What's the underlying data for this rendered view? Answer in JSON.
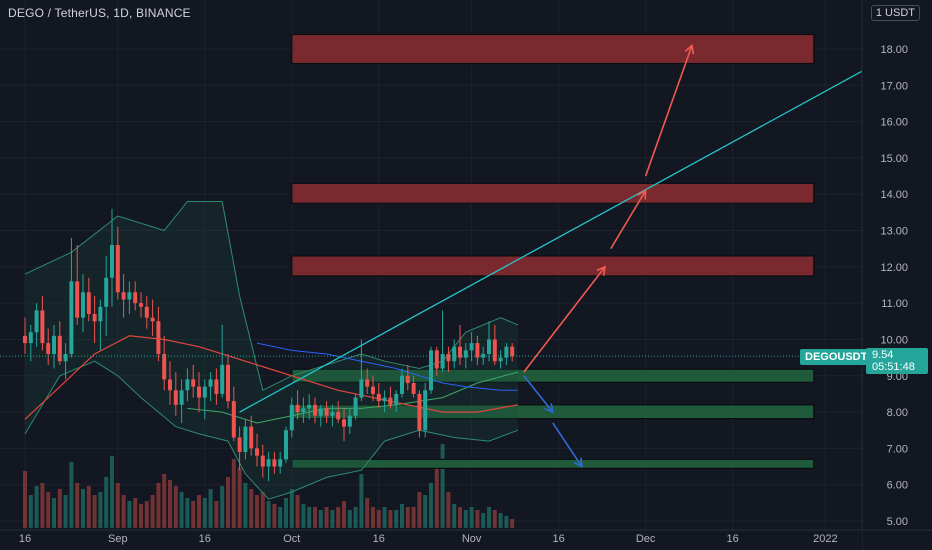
{
  "header": {
    "title": "DEGO / TetherUS, 1D, BINANCE",
    "currency": "1 USDT"
  },
  "price_axis": {
    "symbol_label": "DEGOUSDT",
    "last_price": "9.54",
    "countdown": "05:51:48"
  },
  "colors": {
    "background": "#131722",
    "up_candle": "#26a69a",
    "down_candle": "#ef5350",
    "resistance_zone": "#7a2a2e",
    "support_zone": "#1f5a3a",
    "trendline": "#22c7c7",
    "bollinger": "#2e8b6f",
    "ma_red": "#e0463f",
    "ma_blue": "#2962ff",
    "arrow_up": "#f05a50",
    "arrow_down": "#2f6ad8"
  },
  "chart_data": {
    "type": "candlestick",
    "symbol": "DEGO / TetherUS",
    "timeframe": "1D",
    "exchange": "BINANCE",
    "y_axis": {
      "range": [
        5.0,
        18.6
      ],
      "ticks": [
        "5.00",
        "6.00",
        "7.00",
        "8.00",
        "9.00",
        "10.00",
        "11.00",
        "12.00",
        "13.00",
        "14.00",
        "15.00",
        "16.00",
        "17.00",
        "18.00"
      ],
      "tick_values": [
        5,
        6,
        7,
        8,
        9,
        10,
        11,
        12,
        13,
        14,
        15,
        16,
        17,
        18
      ]
    },
    "x_axis": {
      "ticks": [
        "16",
        "Sep",
        "16",
        "Oct",
        "16",
        "Nov",
        "16",
        "Dec",
        "16",
        "2022"
      ],
      "tick_days": [
        0,
        16,
        31,
        46,
        61,
        77,
        92,
        107,
        122,
        138
      ]
    },
    "last_day": 84,
    "candles": [
      [
        0,
        10.1,
        10.6,
        9.6,
        9.9
      ],
      [
        1,
        9.9,
        10.4,
        9.4,
        10.2
      ],
      [
        2,
        10.2,
        11.0,
        9.8,
        10.8
      ],
      [
        3,
        10.8,
        11.2,
        9.7,
        9.9
      ],
      [
        4,
        9.9,
        10.3,
        9.3,
        9.6
      ],
      [
        5,
        9.6,
        10.4,
        9.2,
        10.1
      ],
      [
        6,
        10.1,
        10.5,
        9.3,
        9.4
      ],
      [
        7,
        9.4,
        9.9,
        8.9,
        9.6
      ],
      [
        8,
        9.6,
        12.8,
        9.5,
        11.6
      ],
      [
        9,
        11.6,
        12.6,
        10.4,
        10.6
      ],
      [
        10,
        10.6,
        11.8,
        10.2,
        11.3
      ],
      [
        11,
        11.3,
        11.7,
        10.5,
        10.7
      ],
      [
        12,
        10.7,
        11.2,
        9.9,
        10.5
      ],
      [
        13,
        10.5,
        11.1,
        9.7,
        10.9
      ],
      [
        14,
        10.9,
        12.3,
        10.1,
        11.7
      ],
      [
        15,
        11.7,
        13.6,
        10.9,
        12.6
      ],
      [
        16,
        12.6,
        13.1,
        11.1,
        11.3
      ],
      [
        17,
        11.3,
        11.8,
        10.6,
        11.1
      ],
      [
        18,
        11.1,
        11.6,
        10.7,
        11.3
      ],
      [
        19,
        11.3,
        11.6,
        10.8,
        11.0
      ],
      [
        20,
        11.0,
        11.3,
        10.6,
        10.9
      ],
      [
        21,
        10.9,
        11.2,
        10.3,
        10.6
      ],
      [
        22,
        10.6,
        11.1,
        10.1,
        10.5
      ],
      [
        23,
        10.5,
        10.9,
        9.4,
        9.6
      ],
      [
        24,
        9.6,
        10.1,
        8.6,
        8.9
      ],
      [
        25,
        8.9,
        9.4,
        8.2,
        8.6
      ],
      [
        26,
        8.6,
        9.1,
        7.9,
        8.2
      ],
      [
        27,
        8.2,
        8.9,
        7.7,
        8.6
      ],
      [
        28,
        8.6,
        9.2,
        8.3,
        8.9
      ],
      [
        29,
        8.9,
        9.3,
        8.4,
        8.7
      ],
      [
        30,
        8.7,
        9.1,
        8.0,
        8.4
      ],
      [
        31,
        8.4,
        8.9,
        7.8,
        8.7
      ],
      [
        32,
        8.7,
        9.1,
        8.3,
        8.9
      ],
      [
        33,
        8.9,
        9.2,
        8.2,
        8.5
      ],
      [
        34,
        8.5,
        10.4,
        8.4,
        9.3
      ],
      [
        35,
        9.3,
        9.6,
        8.1,
        8.3
      ],
      [
        36,
        8.3,
        8.7,
        7.2,
        7.3
      ],
      [
        37,
        7.3,
        7.6,
        6.4,
        6.9
      ],
      [
        38,
        6.9,
        7.8,
        6.7,
        7.6
      ],
      [
        39,
        7.6,
        7.9,
        6.8,
        7.0
      ],
      [
        40,
        7.0,
        7.4,
        6.5,
        6.8
      ],
      [
        41,
        6.8,
        7.1,
        6.2,
        6.5
      ],
      [
        42,
        6.5,
        6.9,
        6.1,
        6.7
      ],
      [
        43,
        6.7,
        6.9,
        6.3,
        6.5
      ],
      [
        44,
        6.5,
        6.9,
        6.3,
        6.7
      ],
      [
        45,
        6.7,
        7.6,
        6.6,
        7.5
      ],
      [
        46,
        7.5,
        8.4,
        7.3,
        8.2
      ],
      [
        47,
        8.2,
        8.6,
        7.8,
        8.0
      ],
      [
        48,
        8.0,
        8.4,
        7.7,
        8.1
      ],
      [
        49,
        8.1,
        8.5,
        7.8,
        8.2
      ],
      [
        50,
        8.2,
        8.4,
        7.7,
        7.9
      ],
      [
        51,
        7.9,
        8.2,
        7.6,
        8.1
      ],
      [
        52,
        8.1,
        8.3,
        7.7,
        7.9
      ],
      [
        53,
        7.9,
        8.2,
        7.6,
        8.0
      ],
      [
        54,
        8.0,
        8.3,
        7.7,
        7.8
      ],
      [
        55,
        7.8,
        8.1,
        7.2,
        7.6
      ],
      [
        56,
        7.6,
        8.1,
        7.4,
        7.9
      ],
      [
        57,
        7.9,
        8.5,
        7.8,
        8.4
      ],
      [
        58,
        8.4,
        10.0,
        8.3,
        8.9
      ],
      [
        59,
        8.9,
        9.2,
        8.5,
        8.7
      ],
      [
        60,
        8.7,
        9.0,
        8.3,
        8.5
      ],
      [
        61,
        8.5,
        8.8,
        8.1,
        8.3
      ],
      [
        62,
        8.3,
        8.6,
        8.0,
        8.4
      ],
      [
        63,
        8.4,
        8.7,
        8.1,
        8.2
      ],
      [
        64,
        8.2,
        8.6,
        8.0,
        8.5
      ],
      [
        65,
        8.5,
        9.2,
        8.4,
        9.0
      ],
      [
        66,
        9.0,
        9.3,
        8.6,
        8.8
      ],
      [
        67,
        8.8,
        9.0,
        8.4,
        8.5
      ],
      [
        68,
        8.5,
        8.6,
        7.3,
        7.5
      ],
      [
        69,
        7.5,
        8.8,
        7.3,
        8.6
      ],
      [
        70,
        8.6,
        9.8,
        8.5,
        9.7
      ],
      [
        71,
        9.7,
        9.8,
        9.0,
        9.2
      ],
      [
        72,
        9.2,
        10.8,
        9.1,
        9.6
      ],
      [
        73,
        9.6,
        9.8,
        9.1,
        9.4
      ],
      [
        74,
        9.4,
        10.0,
        9.2,
        9.8
      ],
      [
        75,
        9.8,
        10.4,
        9.3,
        9.5
      ],
      [
        76,
        9.5,
        9.9,
        9.2,
        9.7
      ],
      [
        77,
        9.7,
        10.2,
        9.4,
        9.9
      ],
      [
        78,
        9.9,
        10.1,
        9.3,
        9.5
      ],
      [
        79,
        9.5,
        9.8,
        9.3,
        9.6
      ],
      [
        80,
        9.6,
        10.5,
        9.4,
        10.0
      ],
      [
        81,
        10.0,
        10.4,
        9.3,
        9.4
      ],
      [
        82,
        9.4,
        9.7,
        9.2,
        9.5
      ],
      [
        83,
        9.5,
        9.9,
        9.3,
        9.8
      ],
      [
        84,
        9.8,
        9.9,
        9.4,
        9.54
      ]
    ],
    "volume": [
      38,
      22,
      28,
      30,
      24,
      20,
      26,
      22,
      44,
      30,
      26,
      28,
      22,
      24,
      34,
      48,
      30,
      22,
      18,
      20,
      16,
      18,
      22,
      30,
      36,
      32,
      28,
      24,
      20,
      18,
      22,
      20,
      26,
      18,
      28,
      34,
      46,
      40,
      30,
      26,
      22,
      24,
      18,
      16,
      14,
      20,
      26,
      22,
      16,
      14,
      14,
      12,
      14,
      12,
      14,
      18,
      12,
      14,
      36,
      20,
      14,
      12,
      14,
      12,
      12,
      16,
      14,
      14,
      24,
      22,
      30,
      40,
      56,
      24,
      16,
      14,
      12,
      14,
      12,
      10,
      14,
      12,
      10,
      8,
      6
    ],
    "zones": [
      {
        "kind": "resistance",
        "low": 17.6,
        "high": 18.4,
        "from_day": 46,
        "to_day": 136
      },
      {
        "kind": "resistance",
        "low": 13.75,
        "high": 14.3,
        "from_day": 46,
        "to_day": 136
      },
      {
        "kind": "resistance",
        "low": 11.75,
        "high": 12.3,
        "from_day": 46,
        "to_day": 136
      },
      {
        "kind": "support",
        "low": 8.82,
        "high": 9.18,
        "from_day": 46,
        "to_day": 136
      },
      {
        "kind": "support",
        "low": 7.82,
        "high": 8.2,
        "from_day": 46,
        "to_day": 136
      },
      {
        "kind": "support",
        "low": 6.45,
        "high": 6.7,
        "from_day": 46,
        "to_day": 136
      }
    ],
    "trendline": [
      [
        37,
        8.0
      ],
      [
        157,
        18.5
      ]
    ],
    "arrows_up": [
      [
        [
          86,
          9.1
        ],
        [
          100,
          12.0
        ]
      ],
      [
        [
          101,
          12.5
        ],
        [
          107,
          14.1
        ]
      ],
      [
        [
          107,
          14.5
        ],
        [
          115,
          18.1
        ]
      ]
    ],
    "arrows_down": [
      [
        [
          86,
          9.0
        ],
        [
          91,
          8.0
        ]
      ],
      [
        [
          91,
          7.7
        ],
        [
          96,
          6.5
        ]
      ]
    ],
    "bollinger_upper": [
      [
        0,
        11.8
      ],
      [
        8,
        12.4
      ],
      [
        16,
        13.4
      ],
      [
        24,
        13.0
      ],
      [
        28,
        13.8
      ],
      [
        34,
        13.8
      ],
      [
        37,
        11.2
      ],
      [
        41,
        8.6
      ],
      [
        46,
        9.0
      ],
      [
        52,
        9.3
      ],
      [
        58,
        9.6
      ],
      [
        62,
        9.4
      ],
      [
        68,
        9.2
      ],
      [
        72,
        9.4
      ],
      [
        76,
        10.2
      ],
      [
        82,
        10.6
      ],
      [
        85,
        10.4
      ]
    ],
    "bollinger_lower": [
      [
        0,
        7.4
      ],
      [
        6,
        9.0
      ],
      [
        12,
        9.4
      ],
      [
        16,
        9.0
      ],
      [
        20,
        8.4
      ],
      [
        26,
        7.6
      ],
      [
        30,
        7.4
      ],
      [
        35,
        7.2
      ],
      [
        38,
        6.3
      ],
      [
        42,
        5.6
      ],
      [
        46,
        5.8
      ],
      [
        52,
        6.2
      ],
      [
        58,
        6.4
      ],
      [
        62,
        7.2
      ],
      [
        68,
        7.5
      ],
      [
        74,
        7.3
      ],
      [
        80,
        7.2
      ],
      [
        85,
        7.5
      ]
    ],
    "ma_red": [
      [
        0,
        7.8
      ],
      [
        6,
        8.7
      ],
      [
        12,
        9.6
      ],
      [
        18,
        10.1
      ],
      [
        24,
        10.0
      ],
      [
        30,
        9.8
      ],
      [
        36,
        9.5
      ],
      [
        42,
        9.2
      ],
      [
        48,
        8.9
      ],
      [
        54,
        8.6
      ],
      [
        60,
        8.4
      ],
      [
        66,
        8.2
      ],
      [
        72,
        8.0
      ],
      [
        78,
        8.0
      ],
      [
        85,
        8.2
      ]
    ],
    "ma_blue": [
      [
        40,
        9.9
      ],
      [
        46,
        9.7
      ],
      [
        52,
        9.6
      ],
      [
        58,
        9.4
      ],
      [
        64,
        9.2
      ],
      [
        68,
        9.0
      ],
      [
        72,
        8.8
      ],
      [
        76,
        8.7
      ],
      [
        82,
        8.6
      ],
      [
        85,
        8.6
      ]
    ],
    "ma_green": [
      [
        28,
        8.1
      ],
      [
        34,
        8.0
      ],
      [
        40,
        7.7
      ],
      [
        46,
        7.9
      ],
      [
        52,
        8.1
      ],
      [
        58,
        8.1
      ],
      [
        64,
        8.2
      ],
      [
        68,
        8.3
      ],
      [
        72,
        8.4
      ],
      [
        78,
        8.8
      ],
      [
        85,
        9.1
      ]
    ]
  }
}
